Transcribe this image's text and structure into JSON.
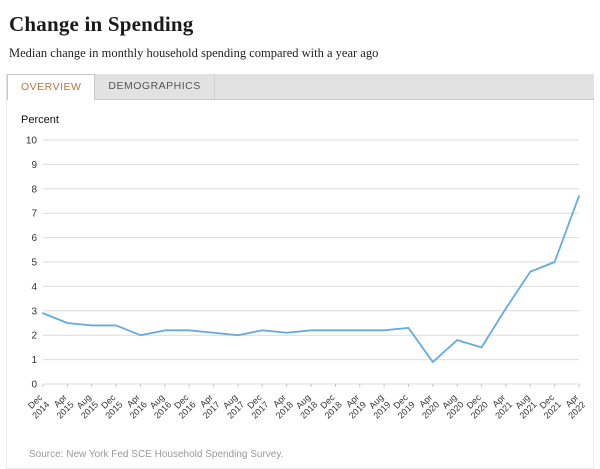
{
  "page": {
    "title": "Change in Spending",
    "subtitle": "Median change in monthly household spending compared with a year ago",
    "source": "Source: New York Fed SCE Household Spending Survey."
  },
  "tabs": {
    "overview": "OVERVIEW",
    "demographics": "DEMOGRAPHICS"
  },
  "colors": {
    "active_tab_text": "#bf7336",
    "line": "#63ace0",
    "grid": "#dcdcdc"
  },
  "chart_data": {
    "type": "line",
    "title": "Change in Spending",
    "subtitle": "Median change in monthly household spending compared with a year ago",
    "xlabel": "",
    "ylabel": "Percent",
    "ylim": [
      0,
      10
    ],
    "yticks": [
      0,
      1,
      2,
      3,
      4,
      5,
      6,
      7,
      8,
      9,
      10
    ],
    "grid": true,
    "legend": "none",
    "line_color": "#63ace0",
    "categories": [
      "Dec 2014",
      "Apr 2015",
      "Aug 2015",
      "Dec 2015",
      "Apr 2016",
      "Aug 2016",
      "Dec 2016",
      "Apr 2017",
      "Aug 2017",
      "Dec 2017",
      "Apr 2018",
      "Aug 2018",
      "Dec 2018",
      "Apr 2019",
      "Aug 2019",
      "Dec 2019",
      "Apr 2020",
      "Aug 2020",
      "Dec 2020",
      "Apr 2021",
      "Aug 2021",
      "Dec 2021",
      "Apr 2022"
    ],
    "values": [
      2.9,
      2.5,
      2.4,
      2.4,
      2.0,
      2.2,
      2.2,
      2.1,
      2.0,
      2.2,
      2.1,
      2.2,
      2.2,
      2.2,
      2.2,
      2.3,
      0.9,
      1.8,
      1.5,
      3.1,
      4.6,
      5.0,
      7.7
    ]
  }
}
